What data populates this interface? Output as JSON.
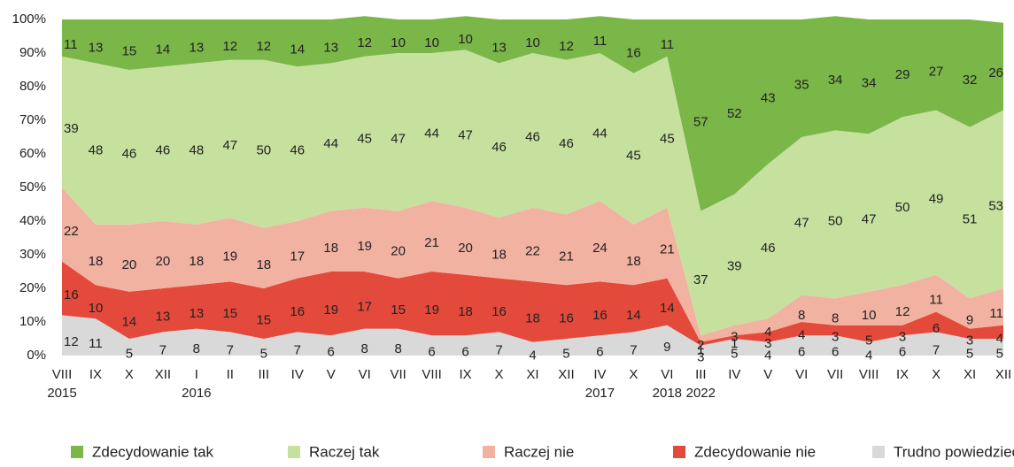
{
  "chart_data": {
    "type": "stacked_area",
    "categories": [
      "VIII",
      "IX",
      "X",
      "XII",
      "I",
      "II",
      "III",
      "IV",
      "V",
      "VI",
      "VII",
      "VIII",
      "IX",
      "X",
      "XI",
      "XII",
      "IV",
      "X",
      "VI",
      "III",
      "IV",
      "V",
      "VI",
      "VII",
      "VIII",
      "IX",
      "X",
      "XI",
      "XII"
    ],
    "years": [
      "2015",
      null,
      null,
      null,
      "2016",
      null,
      null,
      null,
      null,
      null,
      null,
      null,
      null,
      null,
      null,
      null,
      "2017",
      null,
      "2018",
      "2022",
      null,
      null,
      null,
      null,
      null,
      null,
      null,
      null,
      null
    ],
    "series": [
      {
        "name": "Zdecydowanie tak",
        "color": "#7ab648",
        "values": [
          11,
          13,
          15,
          14,
          13,
          12,
          12,
          14,
          13,
          12,
          10,
          10,
          10,
          13,
          10,
          12,
          11,
          16,
          11,
          57,
          52,
          43,
          35,
          34,
          34,
          29,
          27,
          32,
          26
        ]
      },
      {
        "name": "Raczej tak",
        "color": "#c6e09e",
        "values": [
          39,
          48,
          46,
          46,
          48,
          47,
          50,
          46,
          44,
          45,
          47,
          44,
          47,
          46,
          46,
          46,
          44,
          45,
          45,
          37,
          39,
          46,
          47,
          50,
          47,
          50,
          49,
          51,
          53
        ]
      },
      {
        "name": "Raczej nie",
        "color": "#f2b2a1",
        "values": [
          22,
          18,
          20,
          20,
          18,
          19,
          18,
          17,
          18,
          19,
          20,
          21,
          20,
          18,
          22,
          21,
          24,
          18,
          21,
          2,
          3,
          4,
          8,
          8,
          10,
          12,
          11,
          9,
          11
        ]
      },
      {
        "name": "Zdecydowanie nie",
        "color": "#e44a3b",
        "values": [
          16,
          10,
          14,
          13,
          13,
          15,
          15,
          16,
          19,
          17,
          15,
          19,
          18,
          16,
          18,
          16,
          16,
          14,
          14,
          1,
          1,
          3,
          4,
          3,
          5,
          3,
          6,
          3,
          4
        ]
      },
      {
        "name": "Trudno powiedzieć",
        "color": "#d9d9d9",
        "values": [
          12,
          11,
          5,
          7,
          8,
          7,
          5,
          7,
          6,
          8,
          8,
          6,
          6,
          7,
          4,
          5,
          6,
          7,
          9,
          3,
          5,
          4,
          6,
          6,
          4,
          6,
          7,
          5,
          5
        ]
      }
    ],
    "ylim": [
      0,
      100
    ],
    "yticks": [
      {
        "value": 0,
        "label": "0%"
      },
      {
        "value": 10,
        "label": "10%"
      },
      {
        "value": 20,
        "label": "20%"
      },
      {
        "value": 30,
        "label": "30%"
      },
      {
        "value": 40,
        "label": "40%"
      },
      {
        "value": 50,
        "label": "50%"
      },
      {
        "value": 60,
        "label": "60%"
      },
      {
        "value": 70,
        "label": "70%"
      },
      {
        "value": 80,
        "label": "80%"
      },
      {
        "value": 90,
        "label": "90%"
      },
      {
        "value": 100,
        "label": "100%"
      }
    ],
    "legend": "bottom"
  }
}
